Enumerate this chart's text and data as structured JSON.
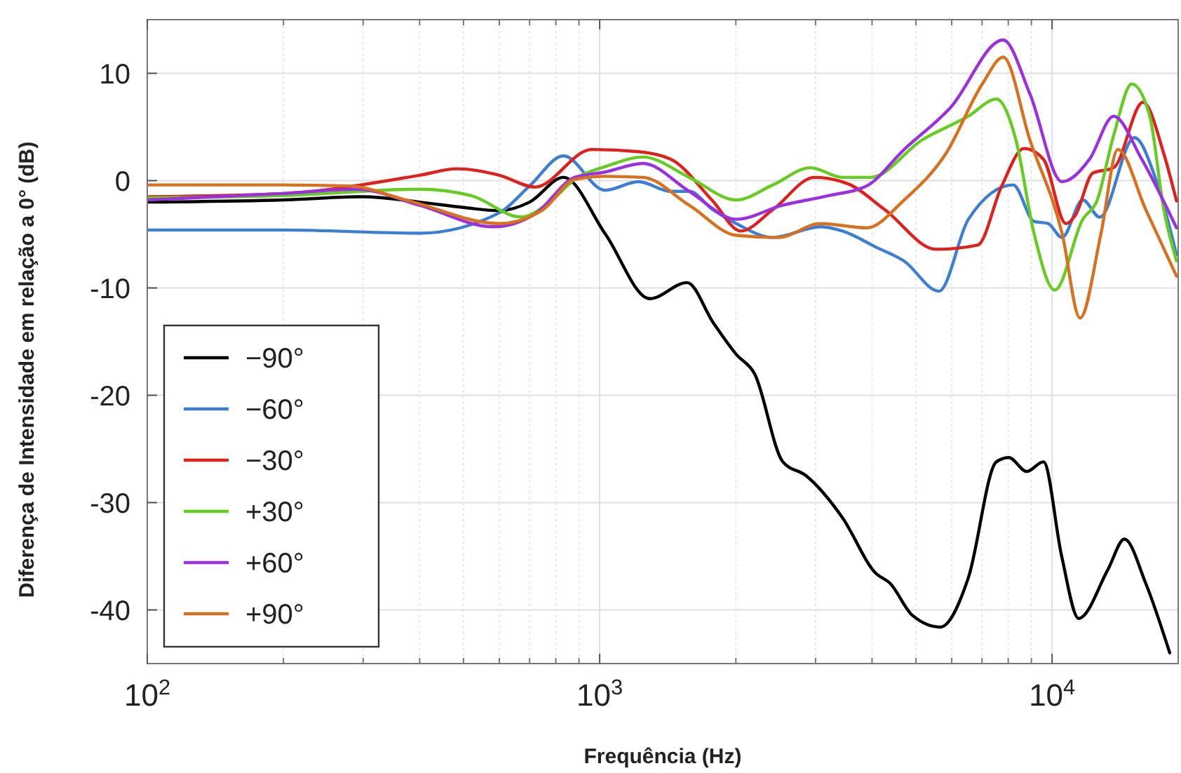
{
  "chart_data": {
    "type": "line",
    "xlabel": "Frequência (Hz)",
    "ylabel": "Diferença de Intensidade em relação a 0° (dB)",
    "log": "x",
    "grid": true,
    "legend": "bottom left",
    "line_style": "solid",
    "marker": "none",
    "xlim": [
      100,
      19000
    ],
    "ylim": [
      -45,
      15
    ],
    "xticks": [
      {
        "value": 100,
        "label": "10$^{2}$"
      },
      {
        "value": 1000,
        "label": "10$^{3}$"
      },
      {
        "value": 10000,
        "label": "10$^{4}$"
      }
    ],
    "yticks": [
      -40,
      -30,
      -20,
      -10,
      0,
      10
    ],
    "series": [
      {
        "name": "−90°",
        "color": "#000000",
        "x": [
          100,
          200,
          300,
          400,
          500,
          600,
          700,
          832,
          1030,
          1290,
          1560,
          1780,
          2005,
          2200,
          2540,
          2860,
          3440,
          4080,
          4380,
          4910,
          5660,
          6530,
          7530,
          8020,
          8790,
          9570,
          10500,
          11450,
          13300,
          14450,
          16100,
          18200
        ],
        "values": [
          -2,
          -1.8,
          -1.5,
          -2,
          -2.5,
          -2.8,
          -2,
          0.3,
          -5,
          -11,
          -9.5,
          -13.2,
          -16.2,
          -18,
          -26.2,
          -27.5,
          -31.4,
          -36.6,
          -37.5,
          -40.5,
          -41.6,
          -37,
          -26.2,
          -25.8,
          -27.1,
          -26.2,
          -35,
          -40.8,
          -36.2,
          -33.4,
          -37.5,
          -44
        ]
      },
      {
        "name": "−60°",
        "color": "#3a7fd5",
        "x": [
          100,
          200,
          400,
          600,
          700,
          832,
          1028,
          1219,
          1436,
          1578,
          1778,
          2004,
          2415,
          3076,
          3443,
          4083,
          4710,
          5623,
          6531,
          8204,
          9120,
          9795,
          10520,
          11690,
          12740,
          15210,
          16900,
          18840
        ],
        "values": [
          -4.6,
          -4.6,
          -4.9,
          -3,
          -0.5,
          2.3,
          -0.9,
          -0.1,
          -1,
          -1,
          -2.7,
          -4,
          -5.3,
          -4.3,
          -4.7,
          -6.2,
          -7.5,
          -10.3,
          -3.6,
          -0.4,
          -3.8,
          -4,
          -5.3,
          -1.8,
          -3.4,
          4,
          0.3,
          -6.9
        ]
      },
      {
        "name": "−30°",
        "color": "#e0201b",
        "x": [
          100,
          200,
          400,
          484,
          600,
          720,
          960,
          1219,
          1436,
          1778,
          2050,
          2415,
          2985,
          3540,
          4266,
          5550,
          6850,
          7740,
          8670,
          9570,
          10730,
          11270,
          12300,
          13680,
          15890,
          17660,
          18840
        ],
        "values": [
          -1.5,
          -1.2,
          0.5,
          1.1,
          0.5,
          -0.6,
          2.9,
          2.7,
          2,
          -1.9,
          -4.7,
          -2.7,
          0.3,
          -0.3,
          -2.7,
          -6.4,
          -6,
          -0.5,
          3,
          2,
          -4,
          -3.2,
          0.7,
          1.2,
          7.3,
          2.5,
          -1.9
        ]
      },
      {
        "name": "+30°",
        "color": "#66cc22",
        "x": [
          100,
          200,
          400,
          520,
          671,
          760,
          893,
          1028,
          1247,
          1578,
          2004,
          2415,
          2924,
          3443,
          3972,
          5164,
          6531,
          7534,
          8318,
          9120,
          10140,
          11690,
          12560,
          13680,
          15000,
          16440,
          17660,
          18840
        ],
        "values": [
          -1.6,
          -1.4,
          -0.8,
          -1.4,
          -3.4,
          -2.3,
          0.3,
          1.3,
          2.2,
          0.3,
          -1.8,
          -0.4,
          1.2,
          0.3,
          0.3,
          3.8,
          6,
          7.6,
          3.8,
          -4.9,
          -10.2,
          -3.6,
          -1.9,
          4.2,
          9,
          6,
          -2.7,
          -7.5
        ]
      },
      {
        "name": "+60°",
        "color": "#9b30e0",
        "x": [
          100,
          200,
          290,
          400,
          582,
          720,
          880,
          1028,
          1247,
          1578,
          2004,
          2535,
          3206,
          3890,
          4710,
          5960,
          7798,
          8930,
          10520,
          12100,
          13680,
          15780,
          18840
        ],
        "values": [
          -1.8,
          -1.2,
          -0.8,
          -2.3,
          -4.3,
          -3.1,
          0.3,
          0.8,
          1.6,
          -1,
          -3.6,
          -2.3,
          -1.4,
          -0.5,
          2.9,
          6.8,
          13.1,
          8.1,
          -0.1,
          2,
          6,
          2,
          -4.4
        ]
      },
      {
        "name": "+90°",
        "color": "#d9701e",
        "x": [
          100,
          200,
          280,
          380,
          600,
          750,
          880,
          1028,
          1247,
          1578,
          2004,
          2483,
          3076,
          3890,
          4710,
          5820,
          7010,
          7798,
          8930,
          10520,
          11530,
          12830,
          13970,
          16110,
          18840
        ],
        "values": [
          -0.4,
          -0.4,
          -0.5,
          -1.9,
          -4,
          -2.7,
          0.1,
          0.4,
          0.3,
          -2.3,
          -5.1,
          -5.3,
          -4,
          -4.4,
          -1.8,
          2.5,
          9,
          11.5,
          3.8,
          -4.9,
          -12.8,
          -4.9,
          2.9,
          -2.7,
          -8.9
        ]
      }
    ]
  }
}
